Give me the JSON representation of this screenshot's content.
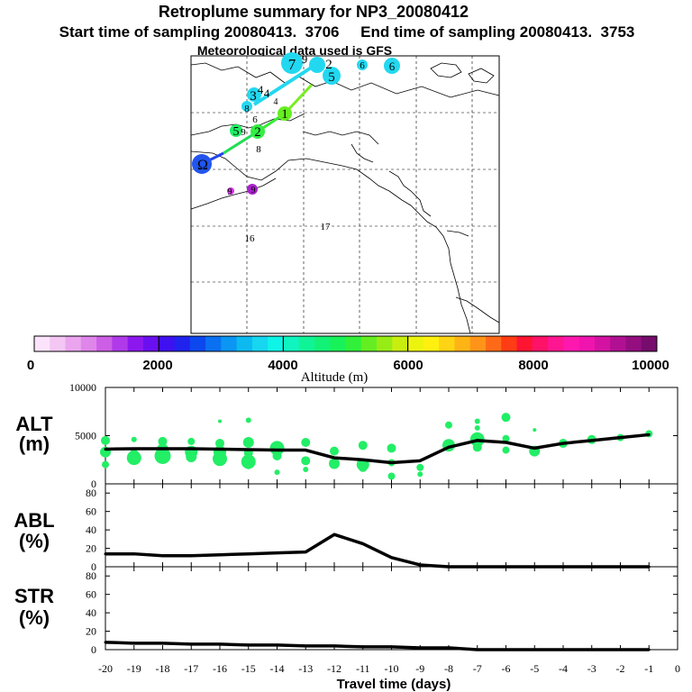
{
  "header": {
    "title": "Retroplume summary for NP3_20080412",
    "sampling_line": "Start time of sampling 20080413.  3706     End time of sampling 20080413.  3753",
    "met_line": "Meteorological data used is GFS"
  },
  "map": {
    "plume_labels": [
      "7",
      "9",
      "2",
      "5",
      "6",
      "6",
      "4",
      "4",
      "3",
      "4",
      "8",
      "6",
      "1",
      "5",
      "2",
      "9",
      "8",
      "Ω",
      "9",
      "9"
    ],
    "grid_labels": [
      "16",
      "17"
    ]
  },
  "colorbar": {
    "xlabel": "Altitude (m)",
    "tick_labels": [
      "0",
      "2000",
      "4000",
      "6000",
      "8000",
      "10000"
    ],
    "colors": [
      "#fbe4fb",
      "#f3c6f3",
      "#eaa5ee",
      "#df86ea",
      "#cd5fe6",
      "#b03aea",
      "#8c18ee",
      "#6a0ff0",
      "#3f10f0",
      "#2022ee",
      "#0d47ee",
      "#0a70f2",
      "#0a96f2",
      "#0cbaf0",
      "#16d6f0",
      "#0ef4e6",
      "#10f4c0",
      "#10f498",
      "#12f277",
      "#18f25a",
      "#30f03a",
      "#64ee22",
      "#98ec16",
      "#c8ee10",
      "#ecf40e",
      "#fff010",
      "#ffd414",
      "#ffb416",
      "#ff9418",
      "#ff6a18",
      "#ff3c14",
      "#ff1432",
      "#ff1268",
      "#ff1690",
      "#ff18ae",
      "#f014ae",
      "#d412a2",
      "#b21092",
      "#940e80",
      "#760c6c"
    ]
  },
  "chart_data": [
    {
      "type": "line",
      "panel": "ALT",
      "ylabel_line1": "ALT",
      "ylabel_line2": "(m)",
      "ylim": [
        0,
        10000
      ],
      "yticks": [
        "10000",
        "5000",
        "0"
      ],
      "x": [
        -20,
        -19,
        -18,
        -17,
        -16,
        -15,
        -14,
        -13,
        -12,
        -11,
        -10,
        -9,
        -8,
        -7,
        -6,
        -5,
        -4,
        -3,
        -2,
        -1
      ],
      "values": [
        3600,
        3650,
        3650,
        3650,
        3600,
        3550,
        3500,
        3500,
        2700,
        2500,
        2200,
        2400,
        3800,
        4500,
        4300,
        3700,
        4200,
        4500,
        4800,
        5100
      ],
      "scatter_color": "#22ee66",
      "scatter": [
        [
          -20,
          4500,
          5
        ],
        [
          -20,
          3300,
          6
        ],
        [
          -20,
          2000,
          4
        ],
        [
          -19,
          4600,
          3
        ],
        [
          -19,
          3100,
          5
        ],
        [
          -19,
          2700,
          8
        ],
        [
          -18,
          4400,
          5
        ],
        [
          -18,
          3500,
          7
        ],
        [
          -18,
          2900,
          9
        ],
        [
          -17,
          4400,
          4
        ],
        [
          -17,
          3300,
          7
        ],
        [
          -17,
          2800,
          6
        ],
        [
          -16,
          6500,
          2
        ],
        [
          -16,
          4200,
          5
        ],
        [
          -16,
          3300,
          7
        ],
        [
          -16,
          2600,
          8
        ],
        [
          -15,
          6600,
          3
        ],
        [
          -15,
          4300,
          6
        ],
        [
          -15,
          3200,
          5
        ],
        [
          -15,
          2300,
          8
        ],
        [
          -15,
          1800,
          3
        ],
        [
          -14,
          3700,
          8
        ],
        [
          -14,
          2900,
          5
        ],
        [
          -14,
          1200,
          3
        ],
        [
          -13,
          4300,
          5
        ],
        [
          -13,
          2400,
          5
        ],
        [
          -13,
          1500,
          3
        ],
        [
          -12,
          3400,
          5
        ],
        [
          -12,
          2100,
          6
        ],
        [
          -11,
          4000,
          5
        ],
        [
          -11,
          2000,
          7
        ],
        [
          -11,
          1700,
          5
        ],
        [
          -10,
          3700,
          5
        ],
        [
          -10,
          2200,
          4
        ],
        [
          -10,
          800,
          4
        ],
        [
          -9,
          1700,
          4
        ],
        [
          -9,
          1000,
          3
        ],
        [
          -8,
          6100,
          4
        ],
        [
          -8,
          4000,
          7
        ],
        [
          -7,
          6500,
          3
        ],
        [
          -7,
          5800,
          3
        ],
        [
          -7,
          4600,
          8
        ],
        [
          -7,
          3800,
          5
        ],
        [
          -6,
          6900,
          5
        ],
        [
          -6,
          4700,
          4
        ],
        [
          -6,
          3500,
          4
        ],
        [
          -5,
          5600,
          2
        ],
        [
          -5,
          3400,
          6
        ],
        [
          -4,
          4200,
          5
        ],
        [
          -3,
          4600,
          5
        ],
        [
          -2,
          4800,
          4
        ],
        [
          -1,
          5200,
          4
        ]
      ]
    },
    {
      "type": "line",
      "panel": "ABL",
      "ylabel_line1": "ABL",
      "ylabel_line2": "(%)",
      "ylim": [
        0,
        90
      ],
      "yticks": [
        "80",
        "60",
        "40",
        "20",
        "0"
      ],
      "x": [
        -20,
        -19,
        -18,
        -17,
        -16,
        -15,
        -14,
        -13,
        -12,
        -11,
        -10,
        -9,
        -8,
        -7,
        -6,
        -5,
        -4,
        -3,
        -2,
        -1
      ],
      "values": [
        14,
        14,
        12,
        12,
        13,
        14,
        15,
        16,
        35,
        25,
        10,
        2,
        0,
        0,
        0,
        0,
        0,
        0,
        0,
        0
      ]
    },
    {
      "type": "line",
      "panel": "STR",
      "ylabel_line1": "STR",
      "ylabel_line2": "(%)",
      "ylim": [
        0,
        90
      ],
      "yticks": [
        "80",
        "60",
        "40",
        "20",
        "0"
      ],
      "x": [
        -20,
        -19,
        -18,
        -17,
        -16,
        -15,
        -14,
        -13,
        -12,
        -11,
        -10,
        -9,
        -8,
        -7,
        -6,
        -5,
        -4,
        -3,
        -2,
        -1
      ],
      "values": [
        8,
        7,
        7,
        6,
        6,
        5,
        5,
        4,
        4,
        3,
        3,
        2,
        2,
        0,
        0,
        0,
        0,
        0,
        0,
        0
      ],
      "xlabel": "Travel time (days)",
      "xtick_labels": [
        "-20",
        "-19",
        "-18",
        "-17",
        "-16",
        "-15",
        "-14",
        "-13",
        "-12",
        "-11",
        "-10",
        "-9",
        "-8",
        "-7",
        "-6",
        "-5",
        "-4",
        "-3",
        "-2",
        "-1",
        "0"
      ]
    }
  ]
}
